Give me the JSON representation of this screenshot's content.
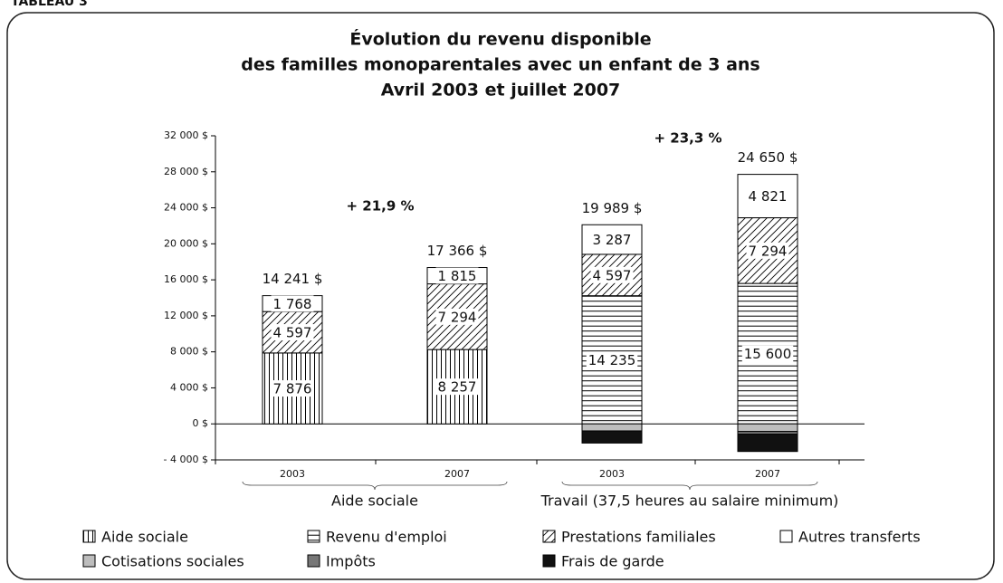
{
  "header": "TABLEAU 3",
  "chart_data": {
    "type": "stacked_bar",
    "title": [
      "Évolution du revenu disponible",
      "des familles monoparentales avec un enfant de 3 ans",
      "Avril 2003 et juillet 2007"
    ],
    "categories": [
      "2003",
      "2007",
      "2003",
      "2007"
    ],
    "groups": [
      {
        "label": "Aide sociale",
        "span": [
          0,
          1
        ]
      },
      {
        "label": "Travail (37,5 heures au salaire minimum)",
        "span": [
          2,
          3
        ]
      }
    ],
    "series": [
      {
        "name": "Aide sociale",
        "pattern": "vertical",
        "color": "#000000",
        "values": [
          7876,
          8257,
          null,
          null
        ],
        "value_labels": [
          "7 876",
          "8 257",
          null,
          null
        ]
      },
      {
        "name": "Revenu d'emploi",
        "pattern": "horizontal",
        "color": "#000000",
        "values": [
          null,
          null,
          14235,
          15600
        ],
        "value_labels": [
          null,
          null,
          "14 235",
          "15 600"
        ]
      },
      {
        "name": "Prestations familiales",
        "pattern": "diagonal",
        "color": "#000000",
        "values": [
          4597,
          7294,
          4597,
          7294
        ],
        "value_labels": [
          "4 597",
          "7 294",
          "4 597",
          "7 294"
        ]
      },
      {
        "name": "Autres transferts",
        "pattern": "solid",
        "color": "#ffffff",
        "values": [
          1768,
          1815,
          3287,
          4821
        ],
        "value_labels": [
          "1 768",
          "1 815",
          "3 287",
          "4 821"
        ]
      },
      {
        "name": "Cotisations sociales",
        "pattern": "solid",
        "color": "#bdbdbd",
        "values": [
          null,
          null,
          -780,
          -850
        ]
      },
      {
        "name": "Impôts",
        "pattern": "solid",
        "color": "#777777",
        "values": [
          null,
          null,
          null,
          -300
        ]
      },
      {
        "name": "Frais de garde",
        "pattern": "solid",
        "color": "#111111",
        "values": [
          null,
          null,
          -1350,
          -1915
        ]
      }
    ],
    "totals": {
      "values": [
        14241,
        17366,
        19989,
        24650
      ],
      "value_labels": [
        "14 241 $",
        "17 366 $",
        "19 989 $",
        "24 650 $"
      ]
    },
    "annotations": [
      "+ 21,9 %",
      "+ 23,3 %"
    ],
    "ylim": [
      -4000,
      32000
    ],
    "yticks": [
      {
        "value": -4000,
        "label": "- 4 000 $"
      },
      {
        "value": 0,
        "label": "0 $"
      },
      {
        "value": 4000,
        "label": "4 000 $"
      },
      {
        "value": 8000,
        "label": "8 000 $"
      },
      {
        "value": 12000,
        "label": "12 000 $"
      },
      {
        "value": 16000,
        "label": "16 000 $"
      },
      {
        "value": 20000,
        "label": "20 000 $"
      },
      {
        "value": 24000,
        "label": "24 000 $"
      },
      {
        "value": 28000,
        "label": "28 000 $"
      },
      {
        "value": 32000,
        "label": "32 000 $"
      }
    ]
  }
}
